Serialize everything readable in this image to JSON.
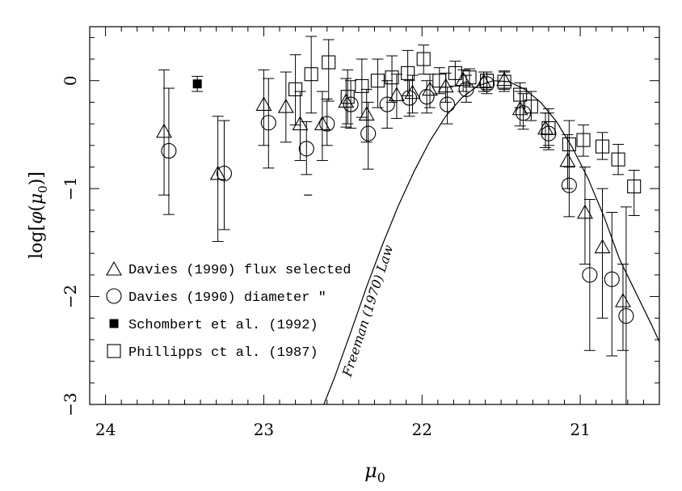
{
  "chart_data": {
    "type": "scatter",
    "xlabel": "μ0",
    "ylabel": "log[φ(μ0)]",
    "xlim": [
      24.1,
      20.5
    ],
    "ylim": [
      -3,
      0.5
    ],
    "x_reversed": true,
    "x_ticks": [
      24,
      23,
      22,
      21
    ],
    "x_tick_labels": [
      "24",
      "23",
      "22",
      "21"
    ],
    "y_ticks": [
      0,
      -1,
      -2,
      -3
    ],
    "y_tick_labels": [
      "0",
      "−1",
      "−2",
      "−3"
    ],
    "legend_position": "lower-left",
    "annotation": {
      "text": "Freeman (1970) Law",
      "x": 22.45,
      "y": -2.75
    },
    "series": [
      {
        "name": "Davies (1990) flux selected",
        "marker": "triangle-open",
        "points": [
          {
            "x": 23.63,
            "y": -0.48,
            "lo": -1.06,
            "hi": 0.1
          },
          {
            "x": 23.29,
            "y": -0.87,
            "lo": -1.49,
            "hi": -0.33
          },
          {
            "x": 23.0,
            "y": -0.23,
            "lo": -0.6,
            "hi": 0.1
          },
          {
            "x": 22.86,
            "y": -0.25,
            "lo": -0.57,
            "hi": 0.08
          },
          {
            "x": 22.77,
            "y": -0.41,
            "lo": -0.74,
            "hi": -0.1
          },
          {
            "x": 22.63,
            "y": -0.41,
            "lo": -0.74,
            "hi": -0.1
          },
          {
            "x": 22.48,
            "y": -0.2,
            "lo": -0.43,
            "hi": 0.02
          },
          {
            "x": 22.35,
            "y": -0.32,
            "lo": -0.57,
            "hi": -0.08
          },
          {
            "x": 22.16,
            "y": -0.14,
            "lo": -0.35,
            "hi": 0.06
          },
          {
            "x": 22.06,
            "y": -0.12,
            "lo": -0.3,
            "hi": 0.05
          },
          {
            "x": 21.95,
            "y": -0.09,
            "lo": -0.25,
            "hi": 0.06
          },
          {
            "x": 21.85,
            "y": -0.06,
            "lo": -0.2,
            "hi": 0.07
          },
          {
            "x": 21.74,
            "y": 0.0,
            "lo": -0.1,
            "hi": 0.1
          },
          {
            "x": 21.61,
            "y": -0.02,
            "lo": -0.1,
            "hi": 0.08
          },
          {
            "x": 21.48,
            "y": 0.0,
            "lo": -0.08,
            "hi": 0.08
          },
          {
            "x": 21.38,
            "y": -0.27,
            "lo": -0.42,
            "hi": -0.1
          },
          {
            "x": 21.22,
            "y": -0.45,
            "lo": -0.62,
            "hi": -0.3
          },
          {
            "x": 21.08,
            "y": -0.75,
            "lo": -1.0,
            "hi": -0.5
          },
          {
            "x": 20.97,
            "y": -1.23,
            "lo": -1.7,
            "hi": -0.8
          },
          {
            "x": 20.86,
            "y": -1.55,
            "lo": -2.2,
            "hi": -1.0
          },
          {
            "x": 20.73,
            "y": -2.05,
            "lo": -2.5,
            "hi": -1.7
          }
        ]
      },
      {
        "name": "Davies (1990) diameter \"",
        "marker": "circle-open",
        "points": [
          {
            "x": 23.6,
            "y": -0.65,
            "lo": -1.24,
            "hi": -0.07
          },
          {
            "x": 23.25,
            "y": -0.86,
            "lo": -1.38,
            "hi": -0.37
          },
          {
            "x": 22.97,
            "y": -0.39,
            "lo": -0.81,
            "hi": 0.02
          },
          {
            "x": 22.73,
            "y": -0.63,
            "lo": -0.87,
            "hi": -0.38
          },
          {
            "x": 22.6,
            "y": -0.4,
            "lo": -0.6,
            "hi": -0.17
          },
          {
            "x": 22.45,
            "y": -0.22,
            "lo": -0.44,
            "hi": 0.0
          },
          {
            "x": 22.34,
            "y": -0.49,
            "lo": -0.82,
            "hi": -0.2
          },
          {
            "x": 22.22,
            "y": -0.22,
            "lo": -0.44,
            "hi": 0.0
          },
          {
            "x": 22.08,
            "y": -0.16,
            "lo": -0.33,
            "hi": 0.0
          },
          {
            "x": 21.97,
            "y": -0.15,
            "lo": -0.3,
            "hi": 0.0
          },
          {
            "x": 21.84,
            "y": -0.22,
            "lo": -0.4,
            "hi": -0.06
          },
          {
            "x": 21.72,
            "y": -0.08,
            "lo": -0.2,
            "hi": 0.05
          },
          {
            "x": 21.59,
            "y": -0.03,
            "lo": -0.12,
            "hi": 0.06
          },
          {
            "x": 21.36,
            "y": -0.3,
            "lo": -0.45,
            "hi": -0.12
          },
          {
            "x": 21.2,
            "y": -0.49,
            "lo": -0.64,
            "hi": -0.3
          },
          {
            "x": 21.07,
            "y": -0.97,
            "lo": -1.26,
            "hi": -0.65
          },
          {
            "x": 20.94,
            "y": -1.8,
            "lo": -2.5,
            "hi": -1.1
          },
          {
            "x": 20.8,
            "y": -1.84,
            "lo": -2.55,
            "hi": -1.22
          },
          {
            "x": 20.71,
            "y": -2.18,
            "lo": -3.0,
            "hi": -1.17
          }
        ]
      },
      {
        "name": "Schombert et al. (1992)",
        "marker": "square-filled",
        "points": [
          {
            "x": 23.42,
            "y": -0.03,
            "lo": -0.1,
            "hi": 0.04
          }
        ]
      },
      {
        "name": "Phillipps ct al. (1987)",
        "marker": "square-open",
        "points": [
          {
            "x": 22.8,
            "y": -0.08,
            "lo": -0.41,
            "hi": 0.24
          },
          {
            "x": 22.7,
            "y": 0.06,
            "lo": -0.3,
            "hi": 0.41
          },
          {
            "x": 22.59,
            "y": 0.17,
            "lo": -0.19,
            "hi": 0.38
          },
          {
            "x": 22.47,
            "y": -0.15,
            "lo": -0.4,
            "hi": 0.1
          },
          {
            "x": 22.38,
            "y": -0.05,
            "lo": -0.34,
            "hi": 0.2
          },
          {
            "x": 22.28,
            "y": 0.0,
            "lo": -0.25,
            "hi": 0.2
          },
          {
            "x": 22.19,
            "y": 0.03,
            "lo": -0.2,
            "hi": 0.23
          },
          {
            "x": 22.09,
            "y": 0.07,
            "lo": -0.14,
            "hi": 0.28
          },
          {
            "x": 21.99,
            "y": 0.2,
            "lo": 0.06,
            "hi": 0.33
          },
          {
            "x": 21.89,
            "y": 0.0,
            "lo": -0.12,
            "hi": 0.12
          },
          {
            "x": 21.79,
            "y": 0.07,
            "lo": -0.05,
            "hi": 0.18
          },
          {
            "x": 21.7,
            "y": 0.03,
            "lo": -0.06,
            "hi": 0.11
          },
          {
            "x": 21.59,
            "y": 0.0,
            "lo": -0.08,
            "hi": 0.08
          },
          {
            "x": 21.48,
            "y": -0.01,
            "lo": -0.1,
            "hi": 0.09
          },
          {
            "x": 21.38,
            "y": -0.13,
            "lo": -0.25,
            "hi": -0.02
          },
          {
            "x": 21.31,
            "y": -0.24,
            "lo": -0.37,
            "hi": -0.1
          },
          {
            "x": 21.2,
            "y": -0.44,
            "lo": -0.6,
            "hi": -0.26
          },
          {
            "x": 21.07,
            "y": -0.59,
            "lo": -0.8,
            "hi": -0.37
          },
          {
            "x": 20.98,
            "y": -0.55,
            "lo": -0.7,
            "hi": -0.41
          },
          {
            "x": 20.86,
            "y": -0.61,
            "lo": -0.73,
            "hi": -0.48
          },
          {
            "x": 20.76,
            "y": -0.73,
            "lo": -0.87,
            "hi": -0.59
          },
          {
            "x": 20.66,
            "y": -0.98,
            "lo": -1.25,
            "hi": -0.83
          }
        ]
      },
      {
        "name": "",
        "marker": "dash",
        "points": [
          {
            "x": 22.72,
            "y": -1.06
          }
        ]
      },
      {
        "name": "Freeman (1970) Law",
        "type": "line",
        "x": [
          22.62,
          22.55,
          22.45,
          22.35,
          22.25,
          22.15,
          22.05,
          21.95,
          21.85,
          21.75,
          21.65,
          21.55,
          21.45,
          21.35,
          21.25,
          21.15,
          21.05,
          20.95,
          20.85,
          20.75,
          20.65,
          20.55,
          20.5
        ],
        "y": [
          -3.0,
          -2.74,
          -2.33,
          -1.91,
          -1.52,
          -1.16,
          -0.84,
          -0.56,
          -0.33,
          -0.16,
          -0.05,
          -0.0,
          -0.01,
          -0.08,
          -0.2,
          -0.38,
          -0.62,
          -0.91,
          -1.26,
          -1.66,
          -1.96,
          -2.26,
          -2.42
        ]
      }
    ]
  }
}
